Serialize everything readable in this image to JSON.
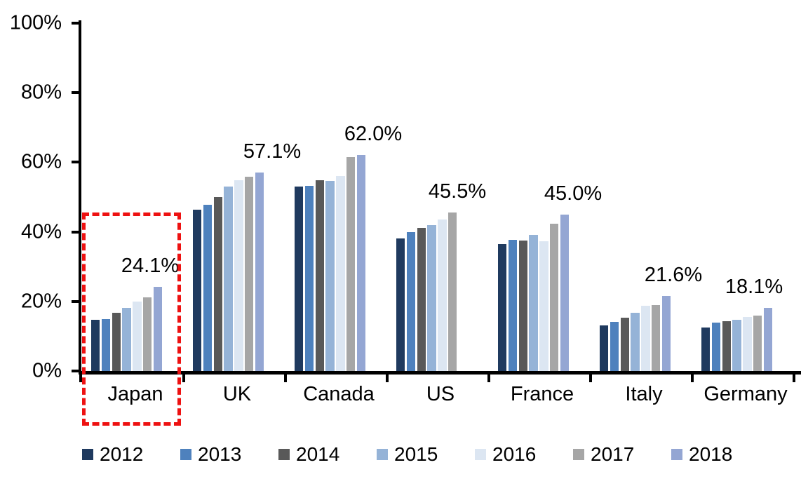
{
  "chart_data": {
    "type": "bar",
    "title": "",
    "subtitle": "",
    "xlabel": "",
    "ylabel": "",
    "categories": [
      "Japan",
      "UK",
      "Canada",
      "US",
      "France",
      "Italy",
      "Germany"
    ],
    "series": [
      {
        "name": "2012",
        "color": "#1F3A5F",
        "values": [
          14.8,
          46.3,
          53.0,
          38.1,
          36.5,
          13.2,
          12.4
        ]
      },
      {
        "name": "2013",
        "color": "#4E81BD",
        "values": [
          15.0,
          47.7,
          53.3,
          39.9,
          37.7,
          14.1,
          14.0
        ]
      },
      {
        "name": "2014",
        "color": "#595959",
        "values": [
          16.7,
          49.9,
          54.8,
          41.1,
          37.6,
          15.3,
          14.3
        ]
      },
      {
        "name": "2015",
        "color": "#95B3D7",
        "values": [
          18.1,
          53.1,
          54.6,
          42.0,
          39.2,
          16.8,
          14.7
        ]
      },
      {
        "name": "2016",
        "color": "#DCE6F2",
        "values": [
          20.0,
          54.8,
          56.0,
          43.5,
          37.3,
          18.8,
          15.5
        ]
      },
      {
        "name": "2017",
        "color": "#A6A6A6",
        "values": [
          21.2,
          55.8,
          61.5,
          45.5,
          42.3,
          19.0,
          15.9
        ]
      },
      {
        "name": "2018",
        "color": "#94A6D3",
        "values": [
          24.1,
          57.1,
          62.0,
          null,
          45.0,
          21.6,
          18.1
        ]
      }
    ],
    "group_value_labels": [
      "24.1%",
      "57.1%",
      "62.0%",
      "45.5%",
      "45.0%",
      "21.6%",
      "18.1%"
    ],
    "y_axis": {
      "tick_labels": [
        "100%",
        "80%",
        "60%",
        "40%",
        "20%",
        "0%"
      ],
      "tick_values": [
        100,
        80,
        60,
        40,
        20,
        0
      ],
      "ylim": [
        0,
        100
      ],
      "grid": false
    },
    "legend": {
      "position": "bottom",
      "entries": [
        "2012",
        "2013",
        "2014",
        "2015",
        "2016",
        "2017",
        "2018"
      ]
    },
    "highlight": {
      "target": "Japan",
      "style": "red-dashed-box",
      "color": "#EE1111"
    },
    "axis_color": "#000000",
    "background_color": "#FFFFFF"
  }
}
